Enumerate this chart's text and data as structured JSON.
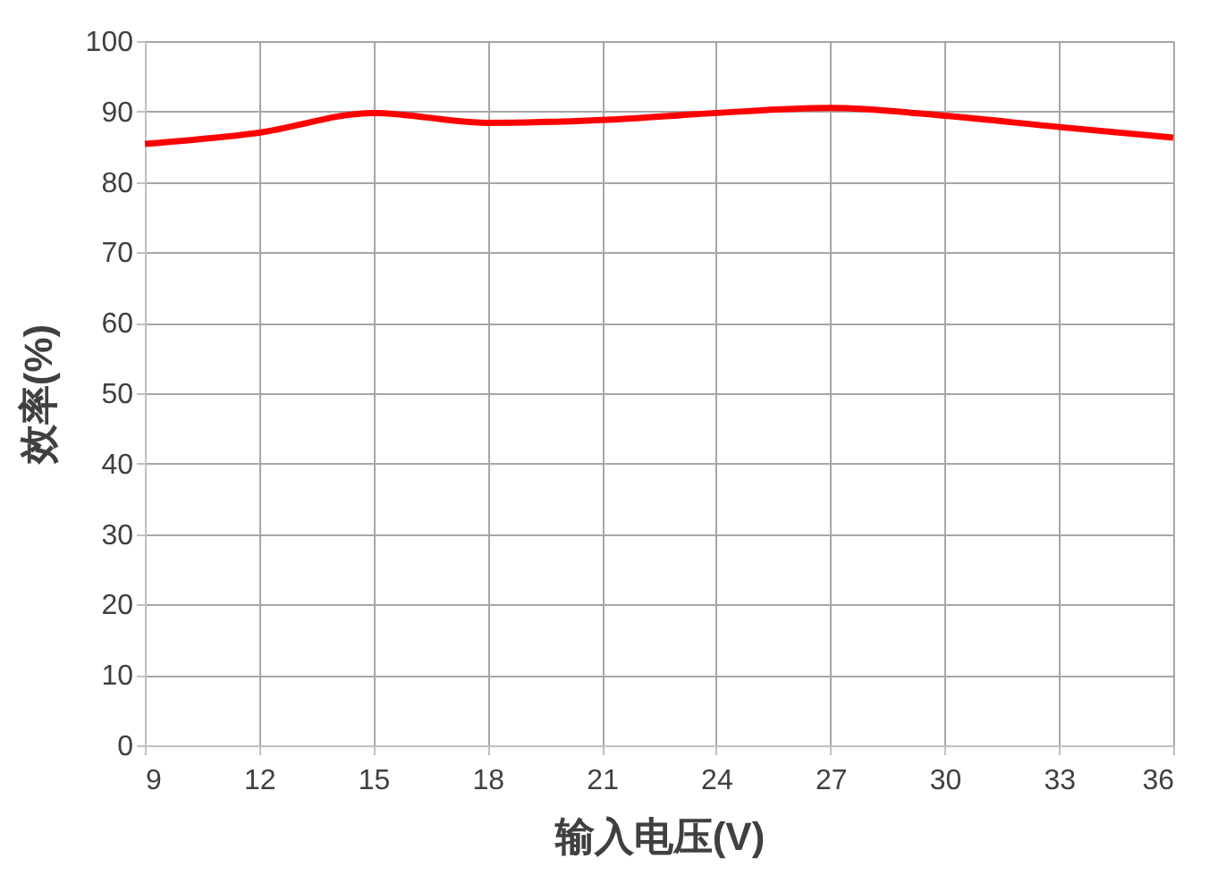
{
  "chart_data": {
    "type": "line",
    "xlabel": "输入电压(V)",
    "ylabel": "效率(%)",
    "x": [
      9,
      12,
      15,
      18,
      21,
      24,
      27,
      30,
      33,
      36
    ],
    "series": [
      {
        "color": "#ff0000",
        "values": [
          85.4,
          87.0,
          89.8,
          88.4,
          88.8,
          89.8,
          90.5,
          89.4,
          87.8,
          86.3
        ]
      }
    ],
    "xlim": [
      9,
      36
    ],
    "xticks": [
      9,
      12,
      15,
      18,
      21,
      24,
      27,
      30,
      33,
      36
    ],
    "ylim": [
      0,
      100
    ],
    "yticks": [
      0,
      10,
      20,
      30,
      40,
      50,
      60,
      70,
      80,
      90,
      100
    ],
    "grid": true,
    "marker": "none",
    "line_style": "solid"
  }
}
